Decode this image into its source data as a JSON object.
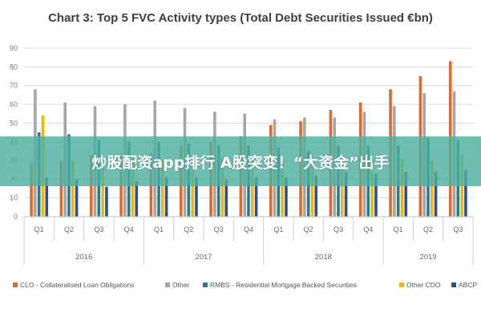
{
  "chart_data": {
    "type": "bar",
    "title": "Chart 3: Top 5 FVC Activity types (Total Debt Securities Issued €bn)",
    "xlabel": "",
    "ylabel": "",
    "ylim": [
      0,
      90
    ],
    "yticks": [
      0,
      10,
      20,
      30,
      40,
      50,
      60,
      70,
      80,
      90
    ],
    "grid": true,
    "legend_position": "bottom",
    "categories": [
      "Q1",
      "Q2",
      "Q3",
      "Q4",
      "Q1",
      "Q2",
      "Q3",
      "Q4",
      "Q1",
      "Q2",
      "Q3",
      "Q4",
      "Q1",
      "Q2",
      "Q3"
    ],
    "groups": [
      {
        "label": "2016",
        "count": 4
      },
      {
        "label": "2017",
        "count": 4
      },
      {
        "label": "2018",
        "count": 4
      },
      {
        "label": "2019",
        "count": 3
      }
    ],
    "series": [
      {
        "name": "CLO - Collateralised Loan Obligations",
        "color": "#e8662a",
        "values": [
          29,
          30,
          33,
          32,
          34,
          38,
          40,
          43,
          49,
          51,
          57,
          61,
          68,
          75,
          83
        ]
      },
      {
        "name": "Other",
        "color": "#a6a6a6",
        "values": [
          68,
          61,
          59,
          60,
          62,
          58,
          56,
          55,
          52,
          53,
          53,
          56,
          59,
          66,
          67
        ]
      },
      {
        "name": "RMBS - Residential Mortgage Backed Securities",
        "color": "#1f7f8c",
        "values": [
          45,
          44,
          41,
          40,
          40,
          39,
          38,
          38,
          37,
          35,
          38,
          38,
          38,
          42,
          41
        ]
      },
      {
        "name": "Other CDO",
        "color": "#f2b50f",
        "values": [
          54,
          30,
          27,
          31,
          30,
          32,
          31,
          30,
          30,
          31,
          30,
          31,
          31,
          30,
          33
        ]
      },
      {
        "name": "ABCP",
        "color": "#2d4d9e",
        "values": [
          21,
          20,
          16,
          19,
          21,
          21,
          20,
          21,
          21,
          22,
          24,
          23,
          24,
          24,
          25
        ]
      }
    ]
  },
  "overlay": {
    "text": "炒股配资app排行 A股突变！“大资金”出手"
  }
}
